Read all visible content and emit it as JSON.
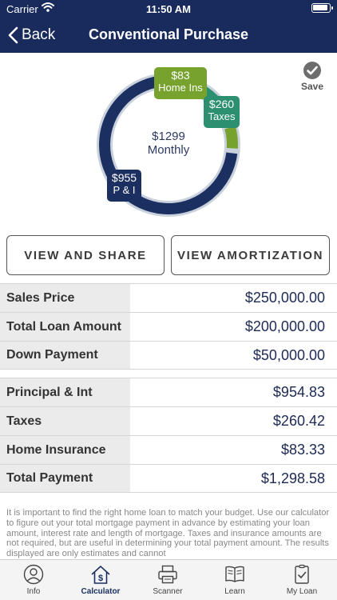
{
  "status_bar": {
    "carrier": "Carrier",
    "time": "11:50 AM"
  },
  "nav": {
    "back_label": "Back",
    "title": "Conventional Purchase"
  },
  "summary": {
    "center_amount": "$1299",
    "center_label": "Monthly",
    "segments": [
      {
        "key": "pi",
        "amount": "$955",
        "label": "P & I",
        "value": 954.83,
        "color": "#1c2f61"
      },
      {
        "key": "taxes",
        "amount": "$260",
        "label": "Taxes",
        "value": 260.42,
        "color": "#2b8f70"
      },
      {
        "key": "ins",
        "amount": "$83",
        "label": "Home Ins",
        "value": 83.33,
        "color": "#77a22d"
      }
    ]
  },
  "save": {
    "label": "Save"
  },
  "buttons": {
    "share": "VIEW AND SHARE",
    "amortization": "VIEW AMORTIZATION"
  },
  "loan_table": [
    {
      "label": "Sales Price",
      "value": "$250,000.00"
    },
    {
      "label": "Total Loan Amount",
      "value": "$200,000.00"
    },
    {
      "label": "Down Payment",
      "value": "$50,000.00"
    }
  ],
  "payment_table": [
    {
      "label": "Principal & Int",
      "value": "$954.83"
    },
    {
      "label": "Taxes",
      "value": "$260.42"
    },
    {
      "label": "Home Insurance",
      "value": "$83.33"
    },
    {
      "label": "Total Payment",
      "value": "$1,298.58"
    }
  ],
  "disclaimer": "It is important to find the right home loan to match your budget. Use our calculator to figure out your total mortgage payment in advance by estimating your loan amount, interest rate and length of mortgage. Taxes and insurance amounts are not required, but are useful in determining your total payment amount.  The results displayed are only estimates and cannot",
  "tabs": [
    {
      "label": "Info",
      "icon": "person-icon"
    },
    {
      "label": "Calculator",
      "icon": "calculator-house-icon",
      "active": true
    },
    {
      "label": "Scanner",
      "icon": "scanner-icon"
    },
    {
      "label": "Learn",
      "icon": "book-icon"
    },
    {
      "label": "My Loan",
      "icon": "checklist-icon"
    }
  ],
  "colors": {
    "nav_bg": "#182b5c",
    "ring_track": "#c9d1dc",
    "accent": "#1c2f61"
  }
}
